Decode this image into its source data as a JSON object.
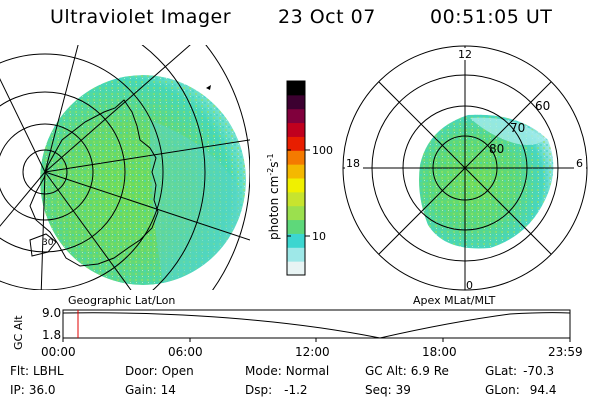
{
  "header": {
    "app_title": "Ultraviolet Imager",
    "date": "23 Oct 07",
    "time": "00:51:05 UT"
  },
  "geographic_panel": {
    "label": "Geographic Lat/Lon",
    "lat_label": "30"
  },
  "colorbar": {
    "unit_label": "photon cm",
    "unit_sup1": "-2",
    "unit_mid": "s",
    "unit_sup2": "-1",
    "tick_100": "100",
    "tick_10": "10",
    "colors": [
      "#e8f4f4",
      "#9ee8e8",
      "#3cd6d0",
      "#5ed87a",
      "#9be04e",
      "#c7e42e",
      "#f0f000",
      "#f4b800",
      "#f47a00",
      "#e81e00",
      "#c0001e",
      "#80003c",
      "#3c0030",
      "#000000"
    ]
  },
  "apex_panel": {
    "label": "Apex MLat/MLT",
    "mlt_12": "12",
    "mlt_18": "18",
    "mlt_6": "6",
    "mlt_0": "0",
    "mlat_60": "60",
    "mlat_70": "70",
    "mlat_80": "80"
  },
  "gc_alt_plot": {
    "axis_label": "GC Alt",
    "y_max": "9.0",
    "y_min": "1.8",
    "x_ticks": [
      "00:00",
      "06:00",
      "12:00",
      "18:00",
      "23:59"
    ],
    "marker_color": "#e00000"
  },
  "info": {
    "filter_label": "Flt:",
    "filter_value": "LBHL",
    "ip_label": "IP:",
    "ip_value": "36.0",
    "door_label": "Door:",
    "door_value": "Open",
    "gain_label": "Gain:",
    "gain_value": "14",
    "mode_label": "Mode:",
    "mode_value": "Normal",
    "dsp_label": "Dsp:",
    "dsp_value": "-1.2",
    "gcalt_label": "GC Alt:",
    "gcalt_value": "6.9 Re",
    "seq_label": "Seq:",
    "seq_value": "39",
    "glat_label": "GLat:",
    "glat_value": "-70.3",
    "glon_label": "GLon:",
    "glon_value": "94.4"
  }
}
